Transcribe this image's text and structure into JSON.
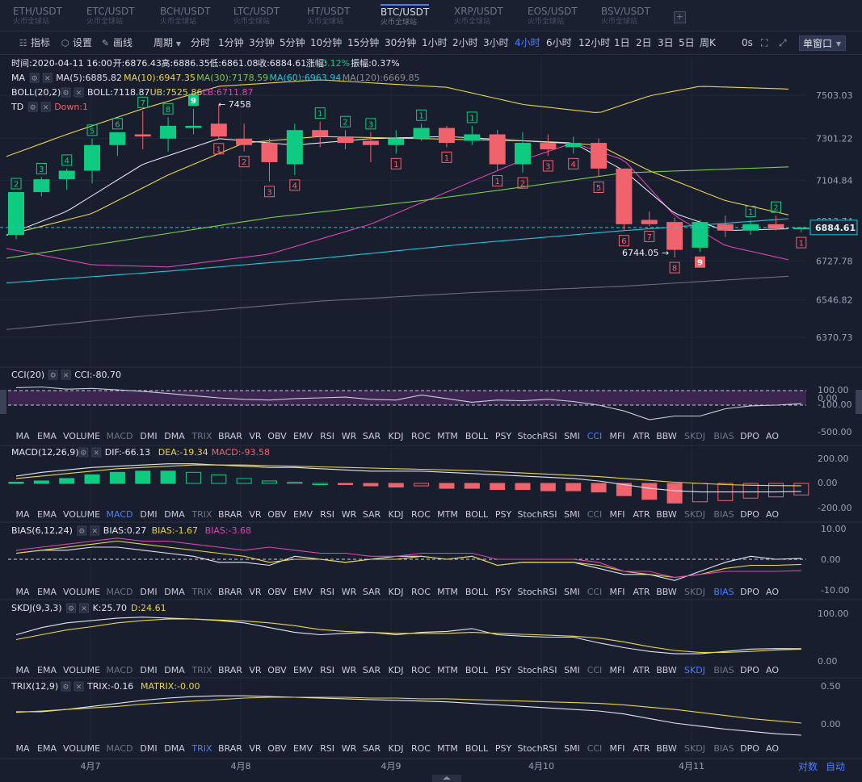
{
  "tabs": [
    {
      "pair": "ETH/USDT",
      "exchange": "火币全球站"
    },
    {
      "pair": "ETC/USDT",
      "exchange": "火币全球站"
    },
    {
      "pair": "BCH/USDT",
      "exchange": "火币全球站"
    },
    {
      "pair": "LTC/USDT",
      "exchange": "火币全球站"
    },
    {
      "pair": "HT/USDT",
      "exchange": "火币全球站"
    },
    {
      "pair": "BTC/USDT",
      "exchange": "火币全球站"
    },
    {
      "pair": "XRP/USDT",
      "exchange": "火币全球站"
    },
    {
      "pair": "EOS/USDT",
      "exchange": "火币全球站"
    },
    {
      "pair": "BSV/USDT",
      "exchange": "火币全球站"
    }
  ],
  "active_tab": "BTC/USDT",
  "add_tab": "+",
  "toolbar": {
    "indicators": "指标",
    "settings": "设置",
    "draw": "画线",
    "period": "周期",
    "periods": [
      "分时",
      "1分钟",
      "3分钟",
      "5分钟",
      "10分钟",
      "15分钟",
      "30分钟",
      "1小时",
      "2小时",
      "3小时",
      "4小时",
      "6小时",
      "12小时",
      "1日",
      "2日",
      "3日",
      "5日",
      "周K"
    ],
    "active_period": "4小时",
    "countdown": "0s",
    "window_mode": "单窗口"
  },
  "ohlc": {
    "time": "时间:2020-04-11 16:00",
    "open": "开:6876.43",
    "high": "高:6886.35",
    "low": "低:6861.08",
    "close": "收:6884.61",
    "change_label": "涨幅:",
    "change": "0.12%",
    "amp": "振幅:0.37%"
  },
  "ma_legend": {
    "name": "MA",
    "ma5": "MA(5):6885.82",
    "ma10": "MA(10):6947.35",
    "ma30": "MA(30):7178.59",
    "ma60": "MA(60):6963.94",
    "ma120": "MA(120):6669.85"
  },
  "boll_legend": {
    "name": "BOLL(20,2)",
    "boll": "BOLL:7118.87",
    "ub": "UB:7525.86",
    "lb": "LB:6711.87"
  },
  "td_legend": {
    "name": "TD",
    "down": "Down:1"
  },
  "price_axis": [
    "7503.03",
    "7301.22",
    "7104.84",
    "6913.74",
    "6727.78",
    "6546.82",
    "6370.73"
  ],
  "current_price": "6884.61",
  "annotations": {
    "high": "7458",
    "low": "6744.05"
  },
  "candles": [
    {
      "o": 6850,
      "h": 7050,
      "l": 6830,
      "c": 7050
    },
    {
      "o": 7050,
      "h": 7120,
      "l": 7030,
      "c": 7110
    },
    {
      "o": 7110,
      "h": 7160,
      "l": 7060,
      "c": 7150
    },
    {
      "o": 7150,
      "h": 7300,
      "l": 7090,
      "c": 7270
    },
    {
      "o": 7270,
      "h": 7330,
      "l": 7220,
      "c": 7330
    },
    {
      "o": 7320,
      "h": 7430,
      "l": 7250,
      "c": 7310
    },
    {
      "o": 7300,
      "h": 7400,
      "l": 7240,
      "c": 7360
    },
    {
      "o": 7350,
      "h": 7440,
      "l": 7320,
      "c": 7360
    },
    {
      "o": 7370,
      "h": 7458,
      "l": 7300,
      "c": 7310
    },
    {
      "o": 7300,
      "h": 7370,
      "l": 7240,
      "c": 7270
    },
    {
      "o": 7280,
      "h": 7300,
      "l": 7100,
      "c": 7190
    },
    {
      "o": 7180,
      "h": 7370,
      "l": 7130,
      "c": 7340
    },
    {
      "o": 7340,
      "h": 7380,
      "l": 7260,
      "c": 7310
    },
    {
      "o": 7310,
      "h": 7340,
      "l": 7250,
      "c": 7280
    },
    {
      "o": 7290,
      "h": 7330,
      "l": 7190,
      "c": 7270
    },
    {
      "o": 7270,
      "h": 7340,
      "l": 7230,
      "c": 7300
    },
    {
      "o": 7300,
      "h": 7370,
      "l": 7290,
      "c": 7350
    },
    {
      "o": 7350,
      "h": 7360,
      "l": 7260,
      "c": 7280
    },
    {
      "o": 7290,
      "h": 7360,
      "l": 7270,
      "c": 7320
    },
    {
      "o": 7320,
      "h": 7340,
      "l": 7150,
      "c": 7180
    },
    {
      "o": 7180,
      "h": 7330,
      "l": 7140,
      "c": 7280
    },
    {
      "o": 7280,
      "h": 7320,
      "l": 7220,
      "c": 7250
    },
    {
      "o": 7260,
      "h": 7310,
      "l": 7230,
      "c": 7280
    },
    {
      "o": 7280,
      "h": 7300,
      "l": 7120,
      "c": 7160
    },
    {
      "o": 7160,
      "h": 7160,
      "l": 6870,
      "c": 6900
    },
    {
      "o": 6920,
      "h": 6960,
      "l": 6890,
      "c": 6900
    },
    {
      "o": 6910,
      "h": 6930,
      "l": 6744,
      "c": 6780
    },
    {
      "o": 6790,
      "h": 6920,
      "l": 6770,
      "c": 6910
    },
    {
      "o": 6900,
      "h": 6940,
      "l": 6840,
      "c": 6870
    },
    {
      "o": 6870,
      "h": 6920,
      "l": 6850,
      "c": 6900
    },
    {
      "o": 6900,
      "h": 6940,
      "l": 6870,
      "c": 6880
    },
    {
      "o": 6876,
      "h": 6886,
      "l": 6861,
      "c": 6884
    }
  ],
  "td_counts": [
    {
      "i": 0,
      "n": "2",
      "dir": "up"
    },
    {
      "i": 1,
      "n": "3",
      "dir": "up"
    },
    {
      "i": 2,
      "n": "4",
      "dir": "up"
    },
    {
      "i": 3,
      "n": "5",
      "dir": "up"
    },
    {
      "i": 4,
      "n": "6",
      "dir": "up"
    },
    {
      "i": 5,
      "n": "7",
      "dir": "up"
    },
    {
      "i": 6,
      "n": "8",
      "dir": "up"
    },
    {
      "i": 7,
      "n": "9",
      "dir": "up",
      "filled": true
    },
    {
      "i": 8,
      "n": "1",
      "dir": "down"
    },
    {
      "i": 9,
      "n": "2",
      "dir": "down"
    },
    {
      "i": 10,
      "n": "3",
      "dir": "down"
    },
    {
      "i": 11,
      "n": "4",
      "dir": "down"
    },
    {
      "i": 12,
      "n": "1",
      "dir": "up"
    },
    {
      "i": 13,
      "n": "2",
      "dir": "up"
    },
    {
      "i": 14,
      "n": "3",
      "dir": "up"
    },
    {
      "i": 15,
      "n": "1",
      "dir": "down"
    },
    {
      "i": 16,
      "n": "1",
      "dir": "up"
    },
    {
      "i": 17,
      "n": "1",
      "dir": "down"
    },
    {
      "i": 18,
      "n": "1",
      "dir": "up"
    },
    {
      "i": 19,
      "n": "1",
      "dir": "down"
    },
    {
      "i": 20,
      "n": "2",
      "dir": "down"
    },
    {
      "i": 21,
      "n": "3",
      "dir": "down"
    },
    {
      "i": 22,
      "n": "4",
      "dir": "down"
    },
    {
      "i": 23,
      "n": "5",
      "dir": "down"
    },
    {
      "i": 24,
      "n": "6",
      "dir": "down"
    },
    {
      "i": 25,
      "n": "7",
      "dir": "down"
    },
    {
      "i": 26,
      "n": "8",
      "dir": "down"
    },
    {
      "i": 27,
      "n": "9",
      "dir": "down",
      "filled": true
    },
    {
      "i": 29,
      "n": "1",
      "dir": "up"
    },
    {
      "i": 30,
      "n": "2",
      "dir": "up"
    },
    {
      "i": 31,
      "n": "1",
      "dir": "down"
    }
  ],
  "indicator_tabs": [
    "MA",
    "EMA",
    "VOLUME",
    "MACD",
    "DMI",
    "DMA",
    "TRIX",
    "BRAR",
    "VR",
    "OBV",
    "EMV",
    "RSI",
    "WR",
    "SAR",
    "KDJ",
    "ROC",
    "MTM",
    "BOLL",
    "PSY",
    "StochRSI",
    "SMI",
    "CCI",
    "MFI",
    "ATR",
    "BBW",
    "SKDJ",
    "BIAS",
    "DPO",
    "AO"
  ],
  "cci": {
    "name": "CCI(20)",
    "value": "CCI:-80.70",
    "axis": [
      "100.00",
      "0.00",
      "-100.00",
      "-500.00"
    ],
    "active": "CCI"
  },
  "macd": {
    "name": "MACD(12,26,9)",
    "dif": "DIF:-66.13",
    "dea": "DEA:-19.34",
    "macd": "MACD:-93.58",
    "axis": [
      "200.00",
      "0.00",
      "-200.00"
    ],
    "active": "MACD"
  },
  "bias": {
    "name": "BIAS(6,12,24)",
    "b1": "BIAS:0.27",
    "b2": "BIAS:-1.67",
    "b3": "BIAS:-3.68",
    "axis": [
      "10.00",
      "0.00",
      "-10.00"
    ],
    "active": "BIAS"
  },
  "skdj": {
    "name": "SKDJ(9,3,3)",
    "k": "K:25.70",
    "d": "D:24.61",
    "axis": [
      "100.00",
      "0.00"
    ],
    "active": "SKDJ"
  },
  "trix": {
    "name": "TRIX(12,9)",
    "trix": "TRIX:-0.16",
    "matrix": "MATRIX:-0.00",
    "axis": [
      "0.50",
      "0.00"
    ],
    "active": "TRIX"
  },
  "dates": [
    "4月7",
    "4月8",
    "4月9",
    "4月10",
    "4月11"
  ],
  "footer": {
    "log": "对数",
    "auto": "自动"
  },
  "colors": {
    "up": "#0ecb81",
    "down": "#f0636c",
    "ma5": "#e0e0e8",
    "ma10": "#e8d44d",
    "ma30": "#7ccb4a",
    "ma60": "#20c8d8",
    "ma120": "#8a8a8a",
    "ub": "#e8d44d",
    "lb": "#d946b0",
    "accent": "#4f7cff"
  }
}
